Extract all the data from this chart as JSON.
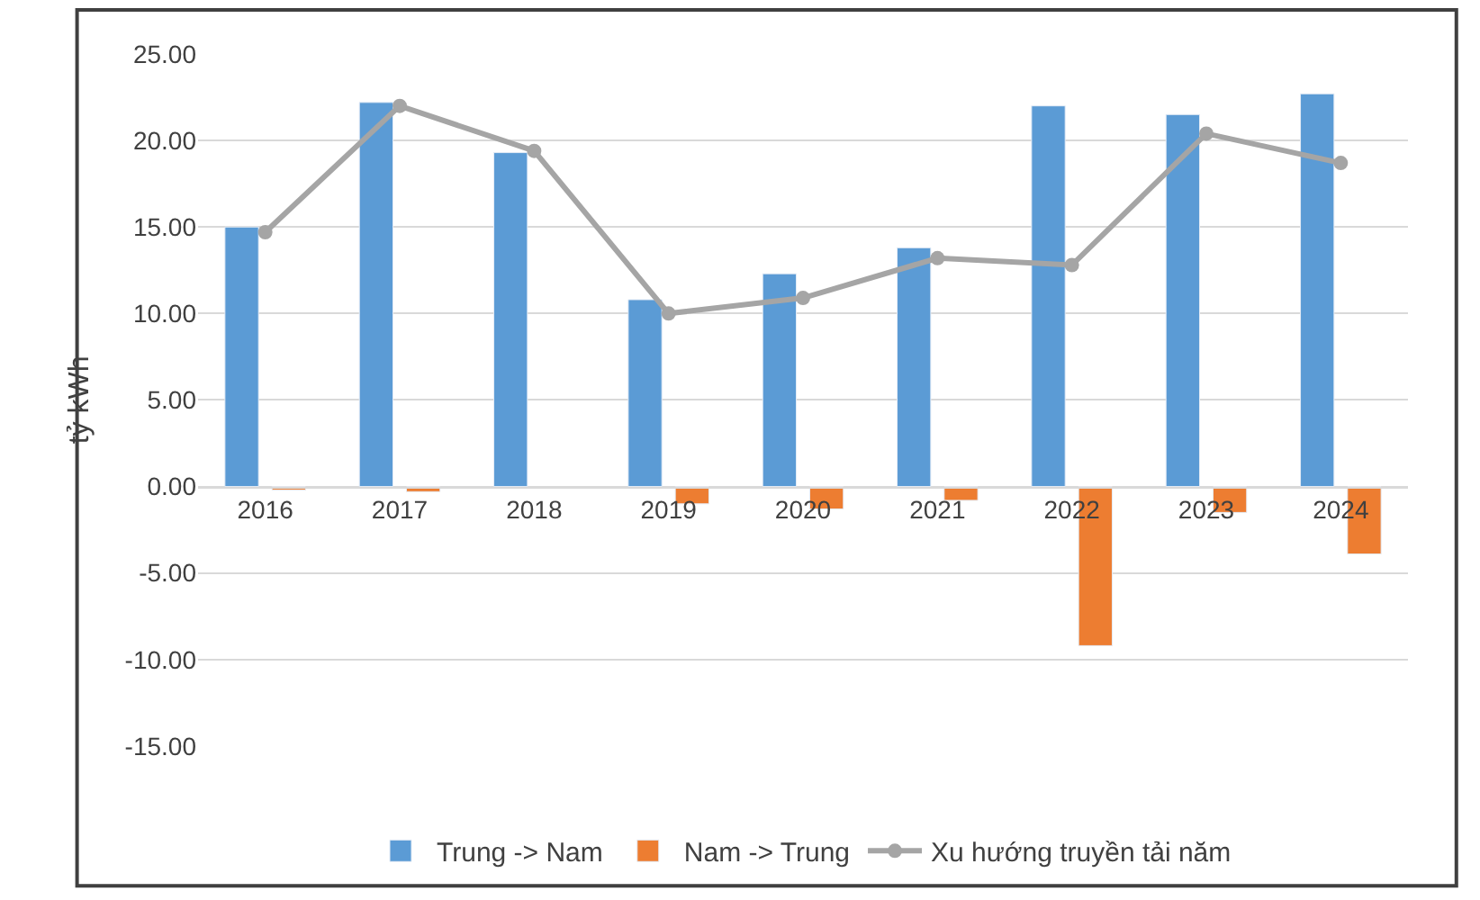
{
  "chart_data": {
    "type": "bar",
    "ylabel": "tỷ kWh",
    "categories": [
      "2016",
      "2017",
      "2018",
      "2019",
      "2020",
      "2021",
      "2022",
      "2023",
      "2024"
    ],
    "series": [
      {
        "name": "Trung -> Nam",
        "color": "#5b9bd5",
        "values": [
          15.0,
          22.2,
          19.3,
          10.8,
          12.3,
          13.8,
          22.0,
          21.5,
          22.7
        ]
      },
      {
        "name": "Nam -> Trung",
        "color": "#ed7d31",
        "values": [
          -0.2,
          -0.3,
          null,
          -1.0,
          -1.3,
          -0.8,
          -9.2,
          -1.5,
          -3.9
        ]
      },
      {
        "name": "Xu hướng truyền tải năm",
        "type": "line",
        "color": "#a5a5a5",
        "marker": "circle",
        "values": [
          14.7,
          22.0,
          19.4,
          10.0,
          10.9,
          13.2,
          12.8,
          20.4,
          18.7
        ]
      }
    ],
    "ylim": [
      -15,
      25
    ],
    "yticks": [
      {
        "value": 25,
        "label": "25.00"
      },
      {
        "value": 20,
        "label": "20.00"
      },
      {
        "value": 15,
        "label": "15.00"
      },
      {
        "value": 10,
        "label": "10.00"
      },
      {
        "value": 5,
        "label": "5.00"
      },
      {
        "value": 0,
        "label": "0.00"
      },
      {
        "value": -5,
        "label": "-5.00"
      },
      {
        "value": -10,
        "label": "-10.00"
      },
      {
        "value": -15,
        "label": "-15.00"
      }
    ],
    "grid": "y",
    "legend": "bottom"
  }
}
